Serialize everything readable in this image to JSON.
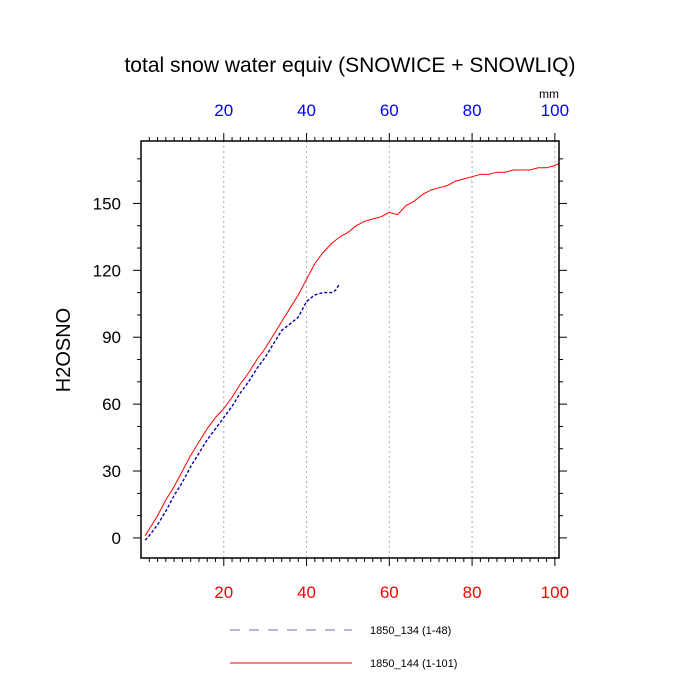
{
  "chart_data": {
    "type": "line",
    "title": "total snow water equiv (SNOWICE + SNOWLIQ)",
    "ylabel": "H2OSNO",
    "units": "mm",
    "xlim": [
      0,
      101
    ],
    "ylim": [
      -9,
      178
    ],
    "grid": "vertical dotted",
    "legend_position": "bottom",
    "x_ticks": [
      20,
      40,
      60,
      80,
      100
    ],
    "y_ticks": [
      0,
      30,
      60,
      90,
      120,
      150
    ],
    "x_tick_labels": [
      "20",
      "40",
      "60",
      "80",
      "100"
    ],
    "y_tick_labels": [
      "0",
      "30",
      "60",
      "90",
      "120",
      "150"
    ],
    "top_tick_labels": [
      "20",
      "40",
      "60",
      "80",
      "100"
    ],
    "series": [
      {
        "name": "1850_134 (1-48)",
        "color": "#0000aa",
        "dash": "dashed",
        "x": [
          1,
          2,
          4,
          6,
          8,
          10,
          12,
          14,
          16,
          18,
          20,
          22,
          24,
          26,
          28,
          30,
          32,
          34,
          36,
          38,
          40,
          42,
          44,
          46,
          47,
          48
        ],
        "y": [
          -1,
          1,
          6,
          12,
          19,
          25,
          32,
          38,
          44,
          49,
          54,
          59,
          65,
          70,
          76,
          81,
          87,
          93,
          96,
          99,
          106,
          109,
          110,
          110,
          111,
          114
        ]
      },
      {
        "name": "1850_144 (1-101)",
        "color": "#ff0000",
        "dash": "solid",
        "x": [
          1,
          2,
          4,
          6,
          8,
          10,
          12,
          14,
          16,
          18,
          20,
          22,
          24,
          26,
          28,
          30,
          32,
          34,
          36,
          38,
          40,
          42,
          44,
          46,
          48,
          50,
          52,
          54,
          56,
          58,
          60,
          62,
          64,
          66,
          68,
          70,
          72,
          74,
          76,
          78,
          80,
          82,
          84,
          86,
          88,
          90,
          92,
          94,
          96,
          98,
          100,
          101
        ],
        "y": [
          1,
          4,
          10,
          17,
          23,
          30,
          37,
          43,
          49,
          54,
          58,
          63,
          69,
          74,
          80,
          85,
          91,
          97,
          103,
          109,
          116,
          123,
          128,
          132,
          135,
          137,
          140,
          142,
          143,
          144,
          146,
          145,
          149,
          151,
          154,
          156,
          157,
          158,
          160,
          161,
          162,
          163,
          163,
          164,
          164,
          165,
          165,
          165,
          166,
          166,
          167,
          168
        ]
      }
    ]
  }
}
